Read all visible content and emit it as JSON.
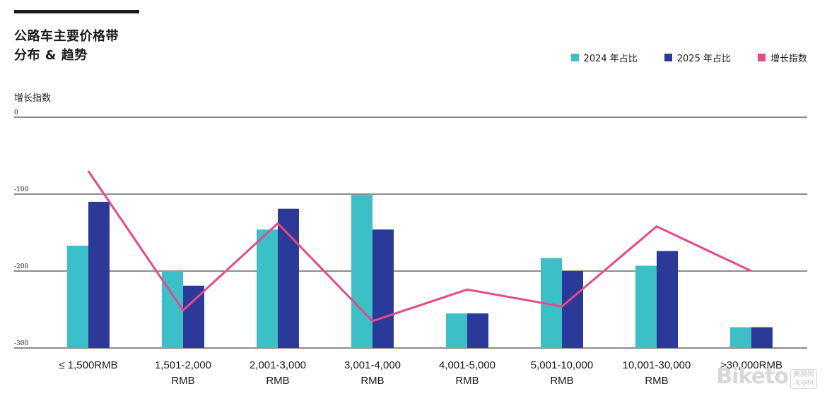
{
  "header": {
    "title_line1": "公路车主要价格带",
    "title_line2": "分布 & 趋势"
  },
  "legend": {
    "items": [
      {
        "label": "2024 年占比",
        "color": "#3cc0c8"
      },
      {
        "label": "2025 年占比",
        "color": "#2b3a98"
      },
      {
        "label": "增长指数",
        "color": "#e8488a"
      }
    ]
  },
  "watermark": {
    "brand": "Biketo",
    "cn": "美骑网",
    "domain": ".COM"
  },
  "chart_data": {
    "type": "bar",
    "title": "公路车主要价格带 分布 & 趋势",
    "ylabel": "增长指数",
    "xlabel": "",
    "ylim": [
      -300,
      0
    ],
    "yticks": [
      0,
      -100,
      -200,
      -300
    ],
    "grid": true,
    "legend_position": "top-right",
    "categories": [
      [
        "≤ 1,500RMB"
      ],
      [
        "1,501-2,000",
        "RMB"
      ],
      [
        "2,001-3,000",
        "RMB"
      ],
      [
        "3,001-4,000",
        "RMB"
      ],
      [
        "4,001-5,000",
        "RMB"
      ],
      [
        "5,001-10,000",
        "RMB"
      ],
      [
        "10,001-30,000",
        "RMB"
      ],
      [
        ">30,000RMB"
      ]
    ],
    "series": [
      {
        "name": "2024 年占比",
        "kind": "bar",
        "color": "#3cc0c8",
        "values": [
          -167,
          -200,
          -146,
          -101,
          -255,
          -183,
          -193,
          -273
        ]
      },
      {
        "name": "2025 年占比",
        "kind": "bar",
        "color": "#2b3a98",
        "values": [
          -110,
          -219,
          -119,
          -146,
          -255,
          -200,
          -174,
          -273
        ]
      },
      {
        "name": "增长指数",
        "kind": "line",
        "color": "#e8488a",
        "values": [
          -70,
          -251,
          -138,
          -265,
          -224,
          -246,
          -142,
          -200
        ]
      }
    ]
  }
}
